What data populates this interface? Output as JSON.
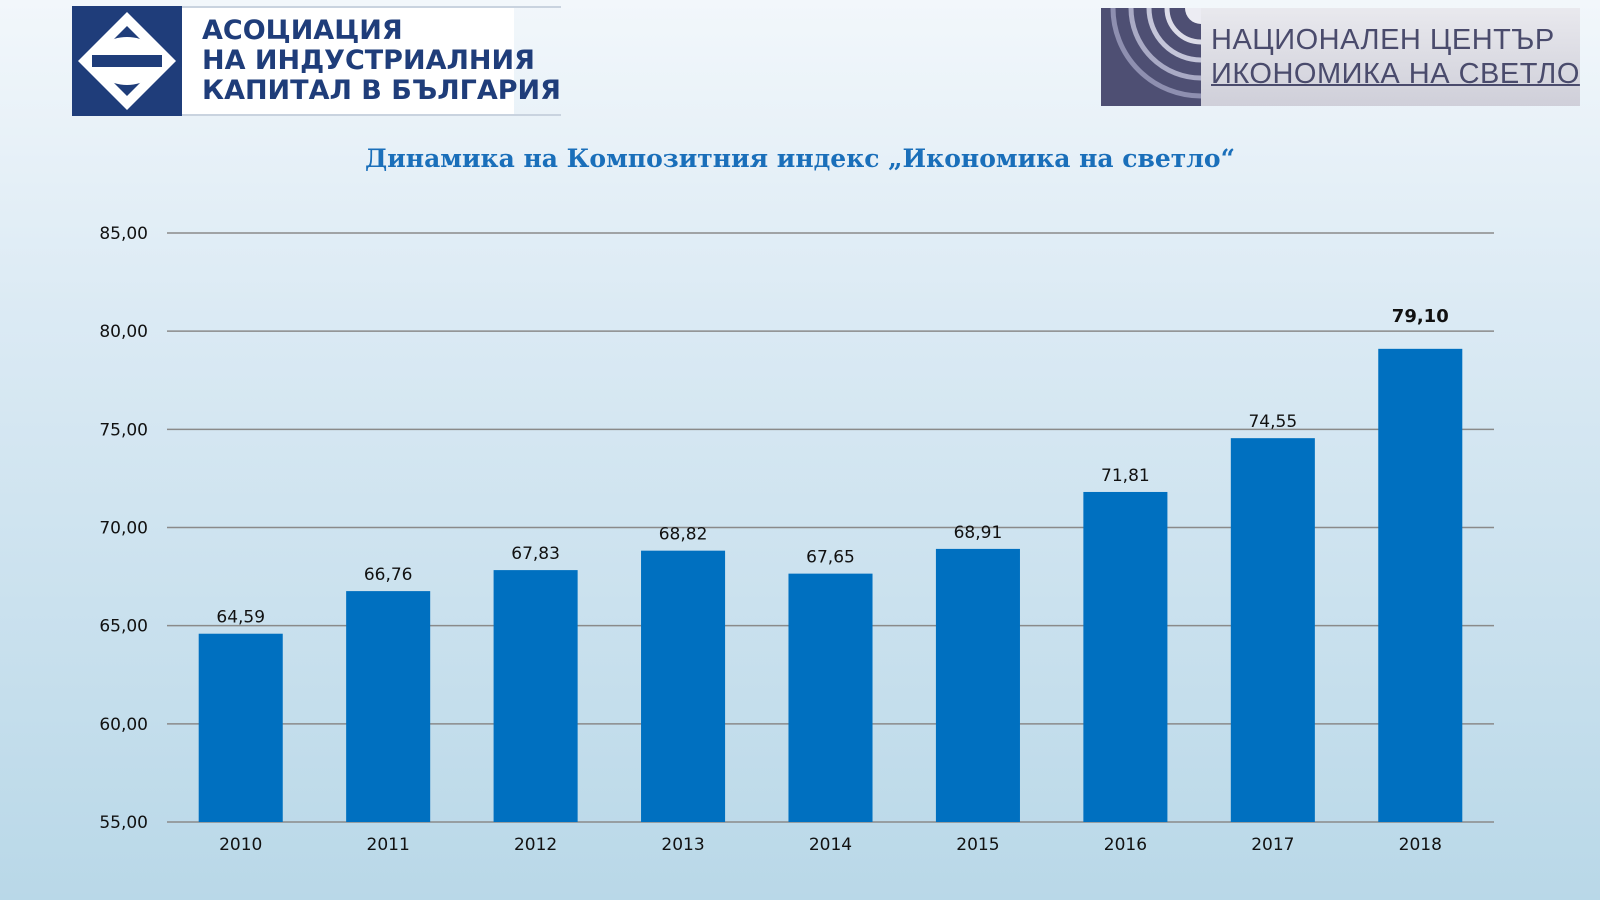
{
  "header": {
    "left_logo": {
      "icon": "diamond-emblem-icon",
      "lines": [
        "АСОЦИАЦИЯ",
        "НА ИНДУСТРИАЛНИЯ",
        "КАПИТАЛ В БЪЛГАРИЯ"
      ]
    },
    "right_logo": {
      "icon": "concentric-arcs-icon",
      "lines": [
        "НАЦИОНАЛЕН ЦЕНТЪР",
        "ИКОНОМИКА НА СВЕТЛО"
      ]
    }
  },
  "colors": {
    "bar": "#0070c0",
    "title": "#1a6fba",
    "gridline": "#8a8a8a",
    "left_logo_blue": "#1f3d7a",
    "right_logo_grey": "#4e4f73"
  },
  "chart_data": {
    "type": "bar",
    "title": "Динамика на Композитния индекс „Икономика на светло“",
    "xlabel": "",
    "ylabel": "",
    "categories": [
      "2010",
      "2011",
      "2012",
      "2013",
      "2014",
      "2015",
      "2016",
      "2017",
      "2018"
    ],
    "values": [
      64.59,
      66.76,
      67.83,
      68.82,
      67.65,
      68.91,
      71.81,
      74.55,
      79.1
    ],
    "data_labels": [
      "64,59",
      "66,76",
      "67,83",
      "68,82",
      "67,65",
      "68,91",
      "71,81",
      "74,55",
      "79,10"
    ],
    "emphasized_label_index": 8,
    "ylim": [
      55,
      85
    ],
    "yticks": [
      55,
      60,
      65,
      70,
      75,
      80,
      85
    ],
    "ytick_labels": [
      "55,00",
      "60,00",
      "65,00",
      "70,00",
      "75,00",
      "80,00",
      "85,00"
    ],
    "grid": true,
    "legend": "none"
  }
}
